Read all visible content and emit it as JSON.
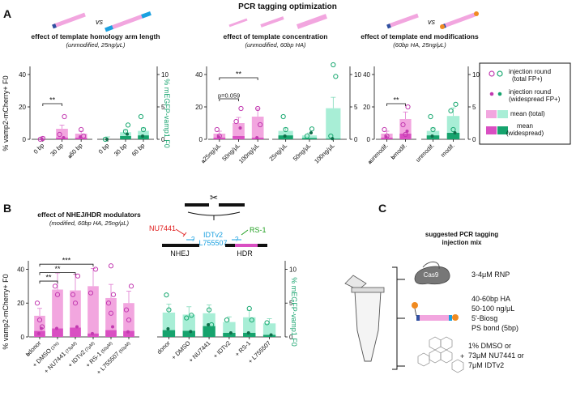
{
  "title": "PCR tagging optimization",
  "panels": {
    "A": "A",
    "B": "B",
    "C": "C"
  },
  "colors": {
    "pink_light": "#f2a6df",
    "pink_dark": "#d94fc2",
    "pink_open": "#c23ab0",
    "green_light": "#a8eed6",
    "green_dark": "#16a36d",
    "green_open": "#18a870",
    "nu7441": "#e02020",
    "idtv2": "#1aa0e0",
    "rs1": "#22a022"
  },
  "y_axis_labels": {
    "left_A": "% vamp2-mCherry+ F0",
    "right_A": "% mEGFP-vamp1 F0",
    "left_B": "% vamp2-mCherry+ F0",
    "right_B": "% mEGFP-vamp1 F0"
  },
  "legend": {
    "items": [
      {
        "label": "injection round",
        "sub": "(total FP+)"
      },
      {
        "label": "injection round",
        "sub": "(widespread FP+)"
      },
      {
        "label": "mean (total)",
        "sub": ""
      },
      {
        "label": "mean",
        "sub": "(widespread)"
      }
    ]
  },
  "vs_labels": [
    "vs",
    "vs"
  ],
  "chart_data": [
    {
      "id": "A1",
      "type": "bar",
      "title": "effect of template homology arm length",
      "subtitle": "(unmodified, 25ng/μL)",
      "categories": [
        "0 bp",
        "30 bp",
        "60 bp"
      ],
      "category_prefix": [
        "",
        "",
        "a"
      ],
      "left_ylim": [
        0,
        45
      ],
      "left_ticks": [
        "0",
        "20",
        "40"
      ],
      "right_ylim": [
        0,
        11.25
      ],
      "right_ticks": [
        "0",
        "5",
        "10"
      ],
      "series": [
        {
          "name": "mCherry total",
          "values": [
            0,
            6.5,
            3.5
          ]
        },
        {
          "name": "mCherry widespread",
          "values": [
            0,
            1,
            1
          ]
        },
        {
          "name": "mEGFP total",
          "values": [
            0,
            1.1,
            1.3
          ]
        },
        {
          "name": "mEGFP widespread",
          "values": [
            0,
            0.5,
            0.6
          ]
        }
      ],
      "points": {
        "pink_open": [
          [
            0,
            0
          ],
          [
            0,
            0.5
          ],
          [
            1,
            14
          ],
          [
            1,
            3
          ],
          [
            2,
            6
          ],
          [
            2,
            2
          ]
        ],
        "pink_filled": [
          [
            0,
            0
          ],
          [
            1,
            1
          ],
          [
            2,
            1.5
          ]
        ],
        "green_open": [
          [
            0,
            0
          ],
          [
            1,
            1.2
          ],
          [
            1,
            2.2
          ],
          [
            2,
            3.5
          ],
          [
            2,
            1.5
          ]
        ],
        "green_filled": [
          [
            0,
            0
          ],
          [
            1,
            0.8
          ],
          [
            2,
            0.5
          ]
        ]
      },
      "brackets": [
        {
          "from": 0,
          "to": 1,
          "y": 22,
          "label": "**"
        }
      ]
    },
    {
      "id": "A2",
      "type": "bar",
      "title": "effect of template concentration",
      "subtitle": "(unmodified, 60bp HA)",
      "categories": [
        "25ng/μL",
        "50ng/μL",
        "100ng/μL"
      ],
      "category_prefix": [
        "a",
        "",
        ""
      ],
      "left_ylim": [
        0,
        45
      ],
      "left_ticks": [
        "0",
        "20",
        "40"
      ],
      "right_ylim": [
        0,
        11.25
      ],
      "right_ticks": [
        "0",
        "5",
        "10"
      ],
      "series": [
        {
          "name": "mCherry total",
          "values": [
            3.5,
            10,
            14
          ]
        },
        {
          "name": "mCherry widespread",
          "values": [
            1,
            2,
            1
          ]
        },
        {
          "name": "mEGFP total",
          "values": [
            1.3,
            0.6,
            4.8
          ]
        },
        {
          "name": "mEGFP widespread",
          "values": [
            0.6,
            0.2,
            0.1
          ]
        }
      ],
      "points": {
        "pink_open": [
          [
            0,
            6
          ],
          [
            0,
            2
          ],
          [
            1,
            19
          ],
          [
            1,
            11
          ],
          [
            2,
            19
          ],
          [
            2,
            9
          ]
        ],
        "pink_filled": [
          [
            0,
            1.5
          ],
          [
            1,
            7
          ],
          [
            2,
            1
          ]
        ],
        "green_open": [
          [
            0,
            3.5
          ],
          [
            0,
            1.5
          ],
          [
            1,
            1.6
          ],
          [
            1,
            0.5
          ],
          [
            2,
            11.5
          ],
          [
            2,
            9.7
          ],
          [
            2,
            0.5
          ]
        ],
        "green_filled": [
          [
            0,
            0.5
          ],
          [
            1,
            1
          ],
          [
            2,
            0.1
          ]
        ]
      },
      "brackets": [
        {
          "from": 0,
          "to": 1,
          "y": 25,
          "label": "p=0.059"
        },
        {
          "from": 0,
          "to": 2,
          "y": 38,
          "label": "**"
        }
      ]
    },
    {
      "id": "A3",
      "type": "bar",
      "title": "effect of template end modifications",
      "subtitle": "(60bp HA, 25ng/μL)",
      "categories": [
        "unmodif.",
        "modif."
      ],
      "category_prefix": [
        "a",
        "b"
      ],
      "left_ylim": [
        0,
        45
      ],
      "left_ticks": [
        "0",
        "20",
        "40"
      ],
      "right_ylim": [
        0,
        11.25
      ],
      "right_ticks": [
        "0",
        "5",
        "10"
      ],
      "series": [
        {
          "name": "mCherry total",
          "values": [
            3.5,
            12.5
          ]
        },
        {
          "name": "mCherry widespread",
          "values": [
            1,
            3.5
          ]
        },
        {
          "name": "mEGFP total",
          "values": [
            1.3,
            3.6
          ]
        },
        {
          "name": "mEGFP widespread",
          "values": [
            0.6,
            1
          ]
        }
      ],
      "points": {
        "pink_open": [
          [
            0,
            6
          ],
          [
            0,
            2
          ],
          [
            1,
            20
          ],
          [
            1,
            9
          ],
          [
            1,
            3
          ]
        ],
        "pink_filled": [
          [
            0,
            1.5
          ],
          [
            1,
            5
          ]
        ],
        "green_open": [
          [
            0,
            3.5
          ],
          [
            0,
            1.5
          ],
          [
            1,
            5.4
          ],
          [
            1,
            4.4
          ],
          [
            1,
            1.5
          ]
        ],
        "green_filled": [
          [
            0,
            0.5
          ],
          [
            1,
            1
          ]
        ]
      },
      "brackets": [
        {
          "from": 0,
          "to": 1,
          "y": 22,
          "label": "**"
        }
      ]
    },
    {
      "id": "B",
      "type": "bar",
      "title": "effect of NHEJ/HDR modulators",
      "subtitle": "(modified, 60bp HA, 25ng/μL)",
      "categories": [
        "donor",
        "+ DMSO",
        "+ NU7441",
        "+ IDTv2",
        "+ RS-1",
        "+ L755507"
      ],
      "category_notes": [
        "",
        "(1%)",
        "(73μM)",
        "(7μM)",
        "(50μM)",
        "(50μM)"
      ],
      "green_categories": [
        "donor",
        "+ DMSO",
        "+ NU7441",
        "+ IDTv2",
        "+ RS-1",
        "+ L755507"
      ],
      "category_prefix": [
        "b",
        "",
        "",
        "",
        "",
        ""
      ],
      "left_ylim": [
        0,
        45
      ],
      "left_ticks": [
        "0",
        "20",
        "40"
      ],
      "right_ylim": [
        0,
        11.25
      ],
      "right_ticks": [
        "0",
        "5",
        "10"
      ],
      "series": [
        {
          "name": "mCherry total",
          "values": [
            12.5,
            28,
            27.5,
            30,
            23,
            20
          ]
        },
        {
          "name": "mCherry widespread",
          "values": [
            3.5,
            5,
            5.5,
            2,
            4,
            3.5
          ]
        },
        {
          "name": "mEGFP total",
          "values": [
            3.6,
            3.3,
            3.5,
            2.2,
            2.9,
            2
          ]
        },
        {
          "name": "mEGFP widespread",
          "values": [
            1,
            0.9,
            1.6,
            0.6,
            0.6,
            0.3
          ]
        }
      ],
      "points": {
        "pink_open": [
          [
            0,
            20
          ],
          [
            0,
            10
          ],
          [
            0,
            6
          ],
          [
            1,
            30
          ],
          [
            1,
            25
          ],
          [
            2,
            36
          ],
          [
            2,
            25
          ],
          [
            2,
            20
          ],
          [
            3,
            40
          ],
          [
            3,
            26
          ],
          [
            4,
            42
          ],
          [
            4,
            25
          ],
          [
            4,
            20
          ],
          [
            4,
            14
          ],
          [
            5,
            30
          ],
          [
            5,
            16
          ],
          [
            5,
            10
          ]
        ],
        "pink_filled": [
          [
            0,
            2
          ],
          [
            0,
            5
          ],
          [
            1,
            5
          ],
          [
            2,
            6
          ],
          [
            3,
            2
          ],
          [
            4,
            6
          ],
          [
            5,
            3
          ]
        ],
        "green_open": [
          [
            0,
            6.2
          ],
          [
            0,
            4
          ],
          [
            1,
            3.2
          ],
          [
            1,
            2.8
          ],
          [
            2,
            4
          ],
          [
            2,
            1.8
          ],
          [
            3,
            2.5
          ],
          [
            4,
            4.2
          ],
          [
            4,
            2.5
          ],
          [
            5,
            2.1
          ]
        ],
        "green_filled": [
          [
            0,
            1.2
          ],
          [
            1,
            0.8
          ],
          [
            2,
            1.8
          ],
          [
            3,
            0.6
          ],
          [
            4,
            0.6
          ],
          [
            5,
            0.3
          ]
        ]
      },
      "brackets": [
        {
          "from": 0,
          "to": 1,
          "y": 33,
          "label": "**"
        },
        {
          "from": 0,
          "to": 2,
          "y": 38,
          "label": "**"
        },
        {
          "from": 0,
          "to": 3,
          "y": 43,
          "label": "***"
        }
      ]
    }
  ],
  "schematic_B": {
    "nhej": "NHEJ",
    "hdr": "HDR",
    "nu7441": "NU7441",
    "idtv2": "IDTv2",
    "l755507": "L755507",
    "rs1": "RS-1",
    "q1": "?",
    "q2": "?"
  },
  "panel_C": {
    "title_line1": "suggested PCR tagging",
    "title_line2": "injection mix",
    "cas9_label": "Cas9",
    "rnp": "3-4μM RNP",
    "template_lines": [
      "40-60bp HA",
      "50-100 ng/μL",
      "5'-Biosg",
      "PS bond (5bp)"
    ],
    "plus": "+",
    "drug_lines": [
      "1% DMSO or",
      "73μM NU7441 or",
      "7μM IDTv2"
    ]
  }
}
